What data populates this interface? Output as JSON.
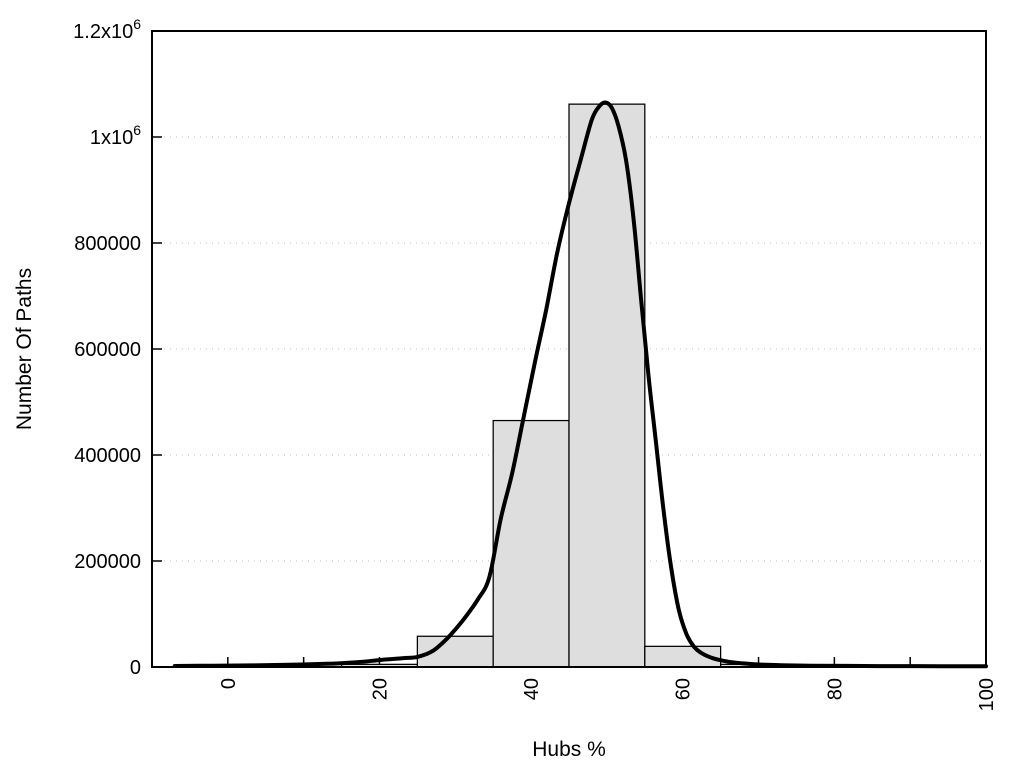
{
  "chart_data": {
    "type": "histogram_with_curve",
    "title": "",
    "xlabel": "Hubs %",
    "ylabel": "Number Of Paths",
    "xlim": [
      -10,
      100
    ],
    "ylim": [
      0,
      1200000
    ],
    "grid": "horizontal-dotted",
    "legend": "none",
    "x_ticks": [
      {
        "v": 0,
        "label": "0"
      },
      {
        "v": 10,
        "label": ""
      },
      {
        "v": 20,
        "label": "20"
      },
      {
        "v": 30,
        "label": ""
      },
      {
        "v": 40,
        "label": "40"
      },
      {
        "v": 50,
        "label": ""
      },
      {
        "v": 60,
        "label": "60"
      },
      {
        "v": 70,
        "label": ""
      },
      {
        "v": 80,
        "label": "80"
      },
      {
        "v": 90,
        "label": ""
      },
      {
        "v": 100,
        "label": "100"
      }
    ],
    "y_ticks": [
      {
        "v": 0,
        "label": "0"
      },
      {
        "v": 200000,
        "label": "200000"
      },
      {
        "v": 400000,
        "label": "400000"
      },
      {
        "v": 600000,
        "label": "600000"
      },
      {
        "v": 800000,
        "label": "800000"
      },
      {
        "v": 1000000,
        "label": "1x10^6"
      },
      {
        "v": 1200000,
        "label": "1.2x10^6"
      }
    ],
    "bars": {
      "bin_edges": [
        15,
        25,
        35,
        45,
        55,
        65,
        75
      ],
      "counts": [
        5000,
        58000,
        465000,
        1062000,
        39000,
        5000
      ]
    },
    "curve": {
      "name": "smooth fit curve",
      "points": [
        [
          -7,
          2000
        ],
        [
          -2,
          2500
        ],
        [
          3,
          3000
        ],
        [
          8,
          4200
        ],
        [
          13,
          6000
        ],
        [
          17,
          9000
        ],
        [
          20,
          13000
        ],
        [
          23,
          16500
        ],
        [
          25,
          19000
        ],
        [
          27,
          30000
        ],
        [
          29,
          55000
        ],
        [
          31,
          88000
        ],
        [
          33,
          128000
        ],
        [
          34.5,
          170000
        ],
        [
          36,
          280000
        ],
        [
          37.5,
          365000
        ],
        [
          39,
          470000
        ],
        [
          40.5,
          575000
        ],
        [
          42,
          675000
        ],
        [
          43.5,
          785000
        ],
        [
          45,
          875000
        ],
        [
          46.5,
          955000
        ],
        [
          48,
          1032000
        ],
        [
          49,
          1058000
        ],
        [
          49.8,
          1065000
        ],
        [
          50.6,
          1056000
        ],
        [
          51.5,
          1022000
        ],
        [
          52.5,
          958000
        ],
        [
          53.5,
          848000
        ],
        [
          54.5,
          695000
        ],
        [
          55.5,
          548000
        ],
        [
          56.5,
          420000
        ],
        [
          57.5,
          292000
        ],
        [
          58.5,
          185000
        ],
        [
          59.5,
          107000
        ],
        [
          60.5,
          62000
        ],
        [
          61.5,
          38000
        ],
        [
          62.5,
          26000
        ],
        [
          64,
          16500
        ],
        [
          66,
          10000
        ],
        [
          68,
          6800
        ],
        [
          70,
          4800
        ],
        [
          73,
          3400
        ],
        [
          77,
          2500
        ],
        [
          82,
          2000
        ],
        [
          88,
          1700
        ],
        [
          94,
          1500
        ],
        [
          100,
          1400
        ]
      ]
    },
    "colors": {
      "background": "#ffffff",
      "bar_fill": "#dedede",
      "bar_stroke": "#000000",
      "curve": "#000000",
      "grid": "#bfbfbf",
      "axis": "#000000",
      "text": "#000000"
    }
  }
}
